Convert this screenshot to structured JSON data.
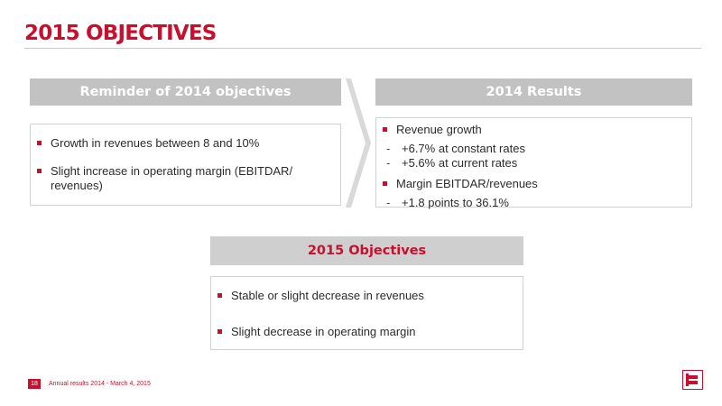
{
  "slide": {
    "title": "2015 OBJECTIVES",
    "reminder": {
      "header": "Reminder of 2014 objectives",
      "items": [
        "Growth in revenues between 8 and 10%",
        "Slight increase in operating margin (EBITDAR/ revenues)"
      ]
    },
    "results": {
      "header": "2014 Results",
      "groups": [
        {
          "label": "Revenue growth",
          "subs": [
            "+6.7% at constant rates",
            "+5.6% at current rates"
          ]
        },
        {
          "label": "Margin EBITDAR/revenues",
          "subs": [
            "+1.8 points to 36.1%"
          ]
        }
      ]
    },
    "objectives": {
      "header": "2015 Objectives",
      "items": [
        "Stable or slight decrease in revenues",
        "Slight decrease in operating margin"
      ]
    },
    "footer": {
      "page_number": "18",
      "text": "Annual results 2014 - March 4, 2015"
    },
    "sub_marker": "-",
    "colors": {
      "accent": "#c8102e",
      "header_grey": "#c2c2c2",
      "border": "#d2d2d2"
    },
    "icons": {
      "logo": "company-logo-icon",
      "arrow": "chevron-arrow-icon"
    }
  }
}
